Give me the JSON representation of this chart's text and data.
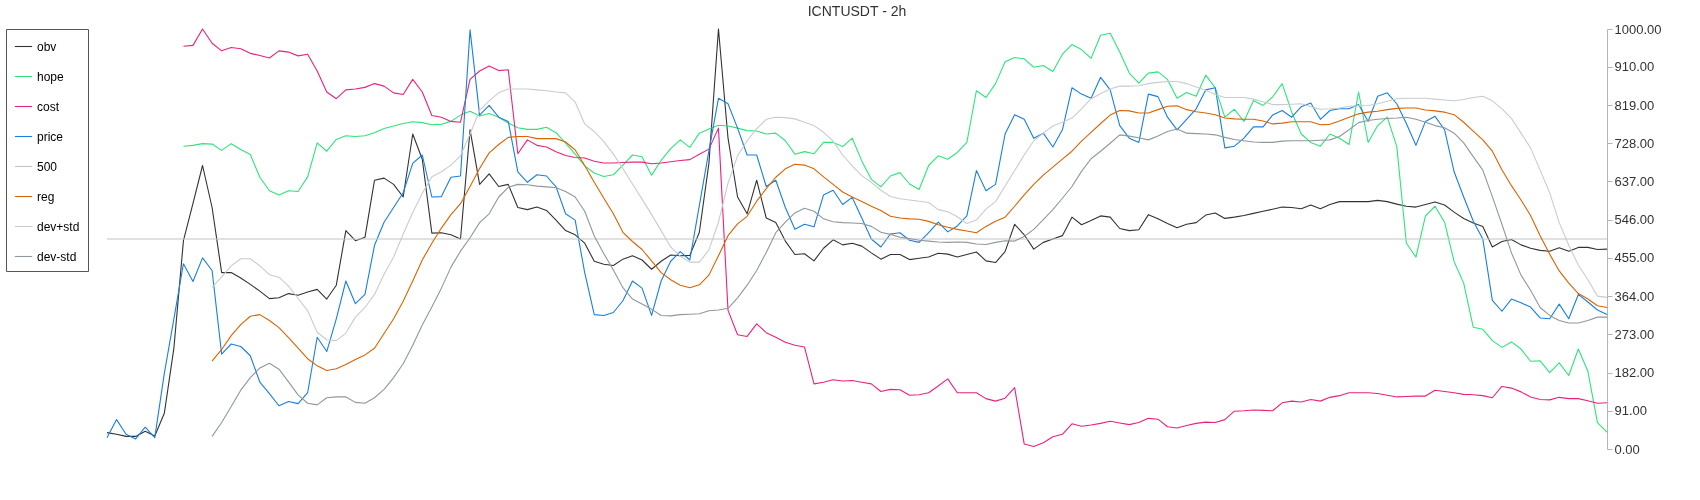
{
  "chart_data": {
    "type": "line",
    "title": "ICNTUSDT - 2h",
    "categories": [
      null,
      null,
      null,
      null,
      null,
      null,
      null,
      null,
      null,
      null,
      null,
      null,
      null,
      null,
      null,
      null,
      null,
      null,
      null,
      null,
      null,
      null,
      null,
      null,
      null,
      null,
      null,
      null,
      null,
      null,
      null,
      null,
      null,
      null,
      null,
      null,
      null,
      null,
      null,
      null,
      null,
      null,
      null,
      null,
      null,
      null,
      null,
      null,
      null,
      null,
      null,
      null,
      null,
      null,
      null,
      null,
      null,
      null,
      null,
      null,
      null,
      null,
      null,
      null,
      null,
      null,
      null,
      null,
      null,
      null,
      null,
      null,
      null,
      null,
      null,
      null,
      null,
      null,
      null,
      null,
      null,
      null,
      null,
      null,
      null,
      null,
      null,
      null,
      null,
      null,
      null,
      null,
      null,
      null,
      null,
      null,
      null,
      null,
      null,
      null,
      null,
      null,
      null,
      null,
      null,
      null,
      null,
      null,
      null,
      null,
      null,
      null,
      null,
      null,
      null,
      null,
      null,
      null,
      null,
      null,
      null,
      null,
      null,
      null,
      null,
      null,
      null,
      null,
      null,
      null,
      null,
      null,
      null,
      null,
      null,
      null,
      null,
      null,
      null,
      null,
      null,
      null,
      null,
      null,
      null,
      null,
      null,
      null,
      null,
      null,
      null,
      null,
      null,
      null,
      null,
      null,
      null,
      null
    ],
    "ylim": [
      0,
      1000
    ],
    "yticks": [
      {
        "value": 0,
        "label": "0.00"
      },
      {
        "value": 91,
        "label": "91.00"
      },
      {
        "value": 182,
        "label": "182.00"
      },
      {
        "value": 273,
        "label": "273.00"
      },
      {
        "value": 364,
        "label": "364.00"
      },
      {
        "value": 455,
        "label": "455.00"
      },
      {
        "value": 546,
        "label": "546.00"
      },
      {
        "value": 637,
        "label": "637.00"
      },
      {
        "value": 728,
        "label": "728.00"
      },
      {
        "value": 819,
        "label": "819.00"
      },
      {
        "value": 910,
        "label": "910.00"
      },
      {
        "value": 1000,
        "label": "1000.00"
      }
    ],
    "tick_labels": "y",
    "grid": false,
    "legend": "top left",
    "series": [
      {
        "name": "obv",
        "color": "#333333",
        "values": [
          39,
          35,
          30,
          30,
          42,
          31,
          85,
          240,
          496,
          585,
          675,
          575,
          420,
          420,
          407,
          392,
          376,
          358,
          360,
          370,
          366,
          374,
          380,
          357,
          390,
          520,
          496,
          504,
          640,
          645,
          630,
          600,
          750,
          690,
          514,
          515,
          510,
          500,
          760,
          630,
          655,
          625,
          630,
          575,
          570,
          576,
          568,
          545,
          520,
          510,
          490,
          447,
          440,
          437,
          452,
          460,
          450,
          428,
          447,
          462,
          460,
          461,
          516,
          680,
          1000,
          740,
          600,
          560,
          640,
          550,
          539,
          495,
          463,
          465,
          448,
          478,
          498,
          486,
          490,
          483,
          467,
          452,
          463,
          463,
          451,
          454,
          457,
          466,
          464,
          457,
          463,
          469,
          448,
          444,
          470,
          535,
          510,
          476,
          492,
          500,
          508,
          552,
          534,
          544,
          555,
          552,
          525,
          520,
          522,
          558,
          548,
          537,
          527,
          535,
          539,
          557,
          562,
          549,
          552,
          556,
          561,
          566,
          571,
          576,
          575,
          572,
          581,
          572,
          582,
          589,
          589,
          589,
          589,
          592,
          589,
          583,
          578,
          576,
          582,
          588,
          581,
          564,
          549,
          538,
          530,
          481,
          494,
          499,
          486,
          478,
          473,
          471,
          479,
          471,
          480,
          480,
          475,
          476
        ]
      },
      {
        "name": "hope",
        "color": "#2ee47a",
        "values": [
          null,
          null,
          null,
          null,
          null,
          null,
          null,
          null,
          721,
          723,
          727,
          726,
          711,
          727,
          713,
          701,
          647,
          615,
          605,
          615,
          613,
          648,
          729,
          709,
          737,
          746,
          744,
          746,
          753,
          763,
          769,
          775,
          779,
          777,
          772,
          773,
          780,
          795,
          804,
          793,
          799,
          790,
          776,
          765,
          761,
          761,
          766,
          753,
          728,
          702,
          674,
          657,
          649,
          653,
          676,
          700,
          696,
          652,
          687,
          715,
          736,
          718,
          752,
          762,
          771,
          769,
          764,
          758,
          757,
          750,
          752,
          734,
          702,
          708,
          703,
          730,
          730,
          720,
          740,
          686,
          642,
          624,
          650,
          658,
          631,
          618,
          675,
          698,
          690,
          706,
          730,
          853,
          837,
          870,
          922,
          932,
          929,
          909,
          913,
          899,
          940,
          963,
          951,
          930,
          985,
          990,
          945,
          895,
          871,
          895,
          898,
          880,
          835,
          849,
          840,
          890,
          860,
          790,
          809,
          780,
          830,
          818,
          838,
          870,
          802,
          750,
          730,
          721,
          750,
          740,
          725,
          850,
          730,
          770,
          790,
          720,
          490,
          457,
          555,
          578,
          540,
          446,
          395,
          290,
          285,
          258,
          242,
          255,
          238,
          209,
          210,
          182,
          205,
          175,
          238,
          185,
          63,
          40
        ]
      },
      {
        "name": "cost",
        "color": "#e8237e",
        "values": [
          null,
          null,
          null,
          null,
          null,
          null,
          null,
          null,
          959,
          961,
          1000,
          966,
          948,
          956,
          953,
          942,
          937,
          931,
          948,
          945,
          936,
          940,
          900,
          850,
          834,
          855,
          857,
          861,
          870,
          864,
          848,
          844,
          880,
          850,
          794,
          790,
          780,
          778,
          880,
          900,
          912,
          901,
          903,
          703,
          736,
          723,
          719,
          708,
          699,
          694,
          693,
          685,
          681,
          681,
          682,
          683,
          683,
          679,
          681,
          684,
          687,
          689,
          702,
          714,
          764,
          330,
          272,
          268,
          298,
          277,
          266,
          254,
          247,
          243,
          155,
          159,
          165,
          162,
          163,
          159,
          155,
          137,
          142,
          141,
          128,
          129,
          134,
          150,
          167,
          134,
          134,
          134,
          120,
          114,
          121,
          146,
          12,
          6,
          15,
          29,
          35,
          60,
          54,
          57,
          61,
          66,
          62,
          58,
          63,
          73,
          71,
          53,
          50,
          56,
          61,
          64,
          63,
          70,
          90,
          91,
          93,
          92,
          91,
          110,
          114,
          112,
          118,
          114,
          123,
          127,
          134,
          134,
          134,
          132,
          128,
          124,
          125,
          126,
          126,
          140,
          137,
          134,
          130,
          129,
          127,
          122,
          149,
          145,
          136,
          124,
          118,
          117,
          123,
          120,
          120,
          115,
          109,
          110
        ]
      },
      {
        "name": "price",
        "color": "#1a7fe0",
        "values": [
          27,
          70,
          35,
          24,
          52,
          27,
          180,
          310,
          441,
          399,
          455,
          425,
          226,
          250,
          244,
          222,
          159,
          132,
          103,
          113,
          108,
          134,
          266,
          232,
          310,
          400,
          346,
          368,
          485,
          540,
          575,
          610,
          680,
          700,
          600,
          601,
          647,
          650,
          998,
          795,
          818,
          790,
          780,
          660,
          635,
          653,
          650,
          624,
          560,
          545,
          420,
          320,
          318,
          325,
          353,
          400,
          383,
          318,
          400,
          447,
          470,
          450,
          580,
          710,
          835,
          822,
          764,
          700,
          700,
          625,
          640,
          575,
          523,
          535,
          529,
          605,
          616,
          582,
          599,
          550,
          500,
          481,
          512,
          515,
          497,
          492,
          515,
          540,
          517,
          531,
          555,
          663,
          615,
          630,
          750,
          796,
          785,
          740,
          752,
          719,
          760,
          860,
          845,
          835,
          885,
          855,
          770,
          740,
          730,
          845,
          839,
          790,
          760,
          785,
          810,
          855,
          860,
          717,
          721,
          740,
          767,
          767,
          795,
          806,
          790,
          815,
          824,
          785,
          806,
          810,
          810,
          820,
          780,
          840,
          848,
          822,
          775,
          723,
          780,
          792,
          760,
          660,
          600,
          543,
          500,
          354,
          328,
          357,
          348,
          338,
          312,
          310,
          345,
          310,
          368,
          350,
          331,
          320
        ]
      },
      {
        "name": "500",
        "color": "#c4c4c4",
        "values": [
          500,
          500,
          500,
          500,
          500,
          500,
          500,
          500,
          500,
          500,
          500,
          500,
          500,
          500,
          500,
          500,
          500,
          500,
          500,
          500,
          500,
          500,
          500,
          500,
          500,
          500,
          500,
          500,
          500,
          500,
          500,
          500,
          500,
          500,
          500,
          500,
          500,
          500,
          500,
          500,
          500,
          500,
          500,
          500,
          500,
          500,
          500,
          500,
          500,
          500,
          500,
          500,
          500,
          500,
          500,
          500,
          500,
          500,
          500,
          500,
          500,
          500,
          500,
          500,
          500,
          500,
          500,
          500,
          500,
          500,
          500,
          500,
          500,
          500,
          500,
          500,
          500,
          500,
          500,
          500,
          500,
          500,
          500,
          500,
          500,
          500,
          500,
          500,
          500,
          500,
          500,
          500,
          500,
          500,
          500,
          500,
          500,
          500,
          500,
          500,
          500,
          500,
          500,
          500,
          500,
          500,
          500,
          500,
          500,
          500,
          500,
          500,
          500,
          500,
          500,
          500,
          500,
          500,
          500,
          500,
          500,
          500,
          500,
          500,
          500,
          500,
          500,
          500,
          500,
          500,
          500,
          500,
          500,
          500,
          500,
          500,
          500,
          500,
          500,
          500,
          500,
          500,
          500,
          500,
          500,
          500,
          500,
          500,
          500,
          500,
          500,
          500,
          500,
          500,
          500,
          500,
          500,
          500
        ]
      },
      {
        "name": "reg",
        "color": "#d96400",
        "values": [
          null,
          null,
          null,
          null,
          null,
          null,
          null,
          null,
          null,
          null,
          null,
          209,
          237,
          270,
          296,
          316,
          320,
          306,
          289,
          265,
          240,
          215,
          198,
          187,
          191,
          201,
          213,
          224,
          240,
          275,
          310,
          352,
          400,
          450,
          490,
          526,
          558,
          584,
          625,
          668,
          705,
          725,
          742,
          744,
          744,
          739,
          739,
          739,
          731,
          712,
          675,
          635,
          597,
          560,
          516,
          494,
          475,
          448,
          420,
          403,
          390,
          384,
          391,
          414,
          460,
          508,
          536,
          554,
          590,
          620,
          647,
          667,
          678,
          676,
          667,
          648,
          630,
          612,
          600,
          589,
          578,
          568,
          554,
          550,
          548,
          547,
          542,
          534,
          528,
          523,
          519,
          515,
          530,
          542,
          552,
          578,
          605,
          630,
          652,
          671,
          690,
          709,
          733,
          754,
          775,
          795,
          806,
          805,
          800,
          800,
          808,
          816,
          817,
          808,
          803,
          800,
          796,
          788,
          786,
          785,
          785,
          781,
          774,
          776,
          779,
          779,
          779,
          772,
          773,
          781,
          790,
          798,
          802,
          804,
          808,
          811,
          812,
          812,
          807,
          805,
          802,
          796,
          778,
          757,
          736,
          709,
          665,
          627,
          593,
          556,
          508,
          464,
          424,
          395,
          370,
          357,
          341,
          337
        ]
      },
      {
        "name": "dev+std",
        "color": "#c8ccd0",
        "values": [
          null,
          null,
          null,
          null,
          null,
          null,
          null,
          null,
          null,
          null,
          null,
          385,
          410,
          436,
          453,
          453,
          436,
          415,
          409,
          388,
          359,
          329,
          278,
          260,
          258,
          276,
          314,
          337,
          368,
          416,
          457,
          512,
          563,
          609,
          648,
          660,
          676,
          698,
          750,
          806,
          829,
          848,
          857,
          857,
          857,
          855,
          853,
          850,
          848,
          826,
          774,
          756,
          732,
          702,
          668,
          631,
          595,
          558,
          520,
          481,
          459,
          445,
          445,
          474,
          540,
          633,
          698,
          734,
          763,
          785,
          790,
          789,
          786,
          778,
          770,
          754,
          733,
          700,
          674,
          651,
          635,
          616,
          601,
          596,
          593,
          590,
          587,
          570,
          565,
          553,
          537,
          545,
          571,
          589,
          626,
          663,
          700,
          734,
          752,
          769,
          778,
          788,
          810,
          834,
          846,
          857,
          864,
          864,
          865,
          870,
          873,
          875,
          875,
          870,
          862,
          854,
          844,
          837,
          837,
          837,
          833,
          827,
          820,
          820,
          821,
          822,
          815,
          809,
          810,
          812,
          816,
          817,
          818,
          822,
          828,
          834,
          835,
          835,
          835,
          833,
          831,
          829,
          832,
          837,
          840,
          829,
          810,
          787,
          752,
          717,
          664,
          610,
          539,
          485,
          438,
          403,
          364,
          361
        ]
      },
      {
        "name": "dev-std",
        "color": "#8f989f",
        "values": [
          null,
          null,
          null,
          null,
          null,
          null,
          null,
          null,
          null,
          null,
          null,
          30,
          63,
          101,
          140,
          170,
          193,
          204,
          190,
          160,
          129,
          109,
          105,
          122,
          124,
          124,
          111,
          109,
          122,
          142,
          170,
          203,
          247,
          295,
          338,
          383,
          433,
          471,
          503,
          539,
          560,
          600,
          623,
          630,
          629,
          626,
          624,
          622,
          613,
          600,
          566,
          507,
          465,
          426,
          384,
          357,
          345,
          333,
          318,
          317,
          320,
          321,
          322,
          329,
          331,
          335,
          360,
          390,
          425,
          468,
          515,
          540,
          562,
          573,
          566,
          548,
          541,
          539,
          538,
          537,
          530,
          516,
          511,
          504,
          501,
          497,
          495,
          493,
          492,
          493,
          492,
          488,
          487,
          492,
          496,
          495,
          506,
          523,
          546,
          570,
          597,
          625,
          661,
          691,
          709,
          728,
          748,
          745,
          741,
          736,
          745,
          756,
          762,
          752,
          751,
          750,
          748,
          742,
          737,
          734,
          731,
          730,
          730,
          733,
          734,
          734,
          734,
          735,
          736,
          744,
          760,
          777,
          782,
          785,
          787,
          788,
          790,
          785,
          778,
          770,
          765,
          752,
          729,
          696,
          664,
          601,
          535,
          467,
          414,
          378,
          337,
          318,
          306,
          300,
          300,
          306,
          314,
          314
        ]
      }
    ]
  }
}
